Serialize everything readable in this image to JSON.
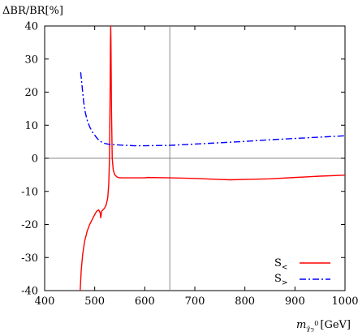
{
  "chart_data": {
    "type": "line",
    "ylabel": "ΔBR/BR[%]",
    "xlabel": "m",
    "xlabel_sub": "χ̃",
    "xlabel_subsub": "2",
    "xlabel_sup": "0",
    "xlabel_unit": "[GeV]",
    "xlim": [
      400,
      1000
    ],
    "ylim": [
      -40,
      40
    ],
    "xticks": [
      400,
      500,
      600,
      700,
      800,
      900,
      1000
    ],
    "yticks": [
      -40,
      -30,
      -20,
      -10,
      0,
      10,
      20,
      30,
      40
    ],
    "grid": false,
    "reference_lines": {
      "horizontal_y": 0,
      "vertical_x": 650
    },
    "legend_position": "bottom-right",
    "series": [
      {
        "name": "S<",
        "name_main": "S",
        "name_sub": "<",
        "color": "#ff0000",
        "style": "solid",
        "points": [
          [
            471,
            -40
          ],
          [
            473,
            -34
          ],
          [
            476,
            -29
          ],
          [
            480,
            -25
          ],
          [
            485,
            -22
          ],
          [
            490,
            -20
          ],
          [
            495,
            -18.5
          ],
          [
            500,
            -17
          ],
          [
            504,
            -16
          ],
          [
            508,
            -15.6
          ],
          [
            511,
            -16.5
          ],
          [
            512,
            -18
          ],
          [
            514,
            -16
          ],
          [
            517,
            -15.5
          ],
          [
            520,
            -15
          ],
          [
            523,
            -14
          ],
          [
            526,
            -12
          ],
          [
            528,
            -8
          ],
          [
            529.5,
            0
          ],
          [
            530.5,
            15
          ],
          [
            531.5,
            35
          ],
          [
            532,
            40
          ],
          [
            532.5,
            35
          ],
          [
            533.5,
            15
          ],
          [
            535,
            0
          ],
          [
            537,
            -3.5
          ],
          [
            540,
            -5
          ],
          [
            545,
            -5.7
          ],
          [
            550,
            -5.9
          ],
          [
            600,
            -5.9
          ],
          [
            605,
            -5.8
          ],
          [
            650,
            -5.9
          ],
          [
            700,
            -6.1
          ],
          [
            750,
            -6.4
          ],
          [
            770,
            -6.5
          ],
          [
            800,
            -6.4
          ],
          [
            850,
            -6.2
          ],
          [
            900,
            -5.8
          ],
          [
            950,
            -5.4
          ],
          [
            1000,
            -5.1
          ]
        ]
      },
      {
        "name": "S>",
        "name_main": "S",
        "name_sub": ">",
        "color": "#0000ff",
        "style": "dashdot",
        "points": [
          [
            472,
            26
          ],
          [
            474,
            23
          ],
          [
            476,
            20
          ],
          [
            478,
            17
          ],
          [
            481,
            14
          ],
          [
            485,
            11.5
          ],
          [
            490,
            9.5
          ],
          [
            495,
            8
          ],
          [
            500,
            7
          ],
          [
            505,
            6
          ],
          [
            510,
            5.2
          ],
          [
            520,
            4.5
          ],
          [
            530,
            4.2
          ],
          [
            550,
            4
          ],
          [
            580,
            3.8
          ],
          [
            600,
            3.8
          ],
          [
            650,
            3.9
          ],
          [
            700,
            4.3
          ],
          [
            750,
            4.7
          ],
          [
            800,
            5.1
          ],
          [
            850,
            5.6
          ],
          [
            900,
            6
          ],
          [
            950,
            6.4
          ],
          [
            1000,
            6.8
          ]
        ]
      }
    ]
  }
}
